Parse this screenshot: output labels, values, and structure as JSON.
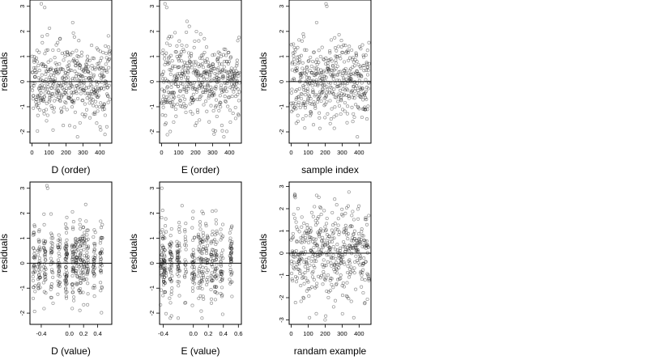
{
  "chart_data": [
    {
      "type": "scatter",
      "xlabel": "D (order)",
      "ylabel": "residuals",
      "xlim": [
        -12,
        470
      ],
      "ylim": [
        -2.45,
        3.25
      ],
      "xticks": [
        0,
        100,
        200,
        300,
        400
      ],
      "xtick_labels": [
        "0",
        "100",
        "200",
        "300",
        "400"
      ],
      "yticks": [
        -2,
        -1,
        0,
        1,
        2,
        3
      ],
      "ytick_labels": [
        "-2",
        "-1",
        "0",
        "1",
        "2",
        "3"
      ],
      "hline": 0,
      "gen": "order",
      "n": 460,
      "seed": 11,
      "highlights": [
        [
          55,
          3.1
        ],
        [
          75,
          2.95
        ],
        [
          240,
          2.35
        ]
      ]
    },
    {
      "type": "scatter",
      "xlabel": "E (order)",
      "ylabel": "residuals",
      "xlim": [
        -12,
        470
      ],
      "ylim": [
        -2.45,
        3.25
      ],
      "xticks": [
        0,
        100,
        200,
        300,
        400
      ],
      "xtick_labels": [
        "0",
        "100",
        "200",
        "300",
        "400"
      ],
      "yticks": [
        -2,
        -1,
        0,
        1,
        2,
        3
      ],
      "ytick_labels": [
        "-2",
        "-1",
        "0",
        "1",
        "2",
        "3"
      ],
      "hline": 0,
      "gen": "order",
      "n": 460,
      "seed": 23,
      "highlights": [
        [
          20,
          3.1
        ],
        [
          30,
          2.95
        ],
        [
          150,
          2.4
        ]
      ]
    },
    {
      "type": "scatter",
      "xlabel": "sample index",
      "ylabel": "residuals",
      "xlim": [
        -12,
        470
      ],
      "ylim": [
        -2.45,
        3.25
      ],
      "xticks": [
        0,
        100,
        200,
        300,
        400
      ],
      "xtick_labels": [
        "0",
        "100",
        "200",
        "300",
        "400"
      ],
      "yticks": [
        -2,
        -1,
        0,
        1,
        2,
        3
      ],
      "ytick_labels": [
        "-2",
        "-1",
        "0",
        "1",
        "2",
        "3"
      ],
      "hline": 0,
      "gen": "order",
      "n": 460,
      "seed": 37,
      "highlights": [
        [
          205,
          3.1
        ],
        [
          210,
          3.0
        ],
        [
          150,
          2.35
        ]
      ]
    },
    {
      "type": "scatter",
      "xlabel": "D (value)",
      "ylabel": "residuals",
      "xlim": [
        -0.56,
        0.6
      ],
      "ylim": [
        -2.45,
        3.25
      ],
      "xticks": [
        -0.4,
        0.0,
        0.2,
        0.4
      ],
      "xtick_labels": [
        "-0.4",
        "0.0",
        "0.2",
        "0.4"
      ],
      "yticks": [
        -2,
        -1,
        0,
        1,
        2,
        3
      ],
      "ytick_labels": [
        "-2",
        "-1",
        "0",
        "1",
        "2",
        "3"
      ],
      "hline": 0,
      "gen": "value",
      "n": 460,
      "seed": 51,
      "clusters": [
        -0.5,
        -0.43,
        -0.35,
        -0.25,
        -0.15,
        -0.05,
        0.05,
        0.1,
        0.15,
        0.2,
        0.25,
        0.35,
        0.45
      ],
      "highlights": [
        [
          -0.32,
          3.1
        ],
        [
          -0.31,
          3.0
        ],
        [
          0.23,
          2.35
        ]
      ]
    },
    {
      "type": "scatter",
      "xlabel": "E (value)",
      "ylabel": "residuals",
      "xlim": [
        -0.45,
        0.64
      ],
      "ylim": [
        -2.45,
        3.25
      ],
      "xticks": [
        -0.4,
        0.0,
        0.2,
        0.4,
        0.6
      ],
      "xtick_labels": [
        "-0.4",
        "0.0",
        "0.2",
        "0.4",
        "0.6"
      ],
      "yticks": [
        -2,
        -1,
        0,
        1,
        2,
        3
      ],
      "ytick_labels": [
        "-2",
        "-1",
        "0",
        "1",
        "2",
        "3"
      ],
      "hline": 0,
      "gen": "value",
      "n": 460,
      "seed": 67,
      "clusters": [
        -0.42,
        -0.38,
        -0.3,
        -0.2,
        -0.1,
        0.0,
        0.08,
        0.12,
        0.18,
        0.25,
        0.3,
        0.38,
        0.5
      ],
      "highlights": [
        [
          -0.42,
          3.0
        ],
        [
          0.3,
          2.1
        ],
        [
          -0.15,
          2.3
        ]
      ]
    },
    {
      "type": "scatter",
      "xlabel": "randam example",
      "ylabel": "residuals",
      "xlim": [
        -12,
        470
      ],
      "ylim": [
        -3.2,
        3.2
      ],
      "xticks": [
        0,
        100,
        200,
        300,
        400
      ],
      "xtick_labels": [
        "0",
        "100",
        "200",
        "300",
        "400"
      ],
      "yticks": [
        -3,
        -2,
        -1,
        0,
        1,
        2,
        3
      ],
      "ytick_labels": [
        "-3",
        "-2",
        "-1",
        "0",
        "1",
        "2",
        "3"
      ],
      "hline": 0,
      "gen": "uniform",
      "n": 460,
      "seed": 83,
      "highlights": [
        [
          340,
          2.75
        ],
        [
          150,
          2.6
        ],
        [
          200,
          -3.0
        ]
      ]
    }
  ]
}
